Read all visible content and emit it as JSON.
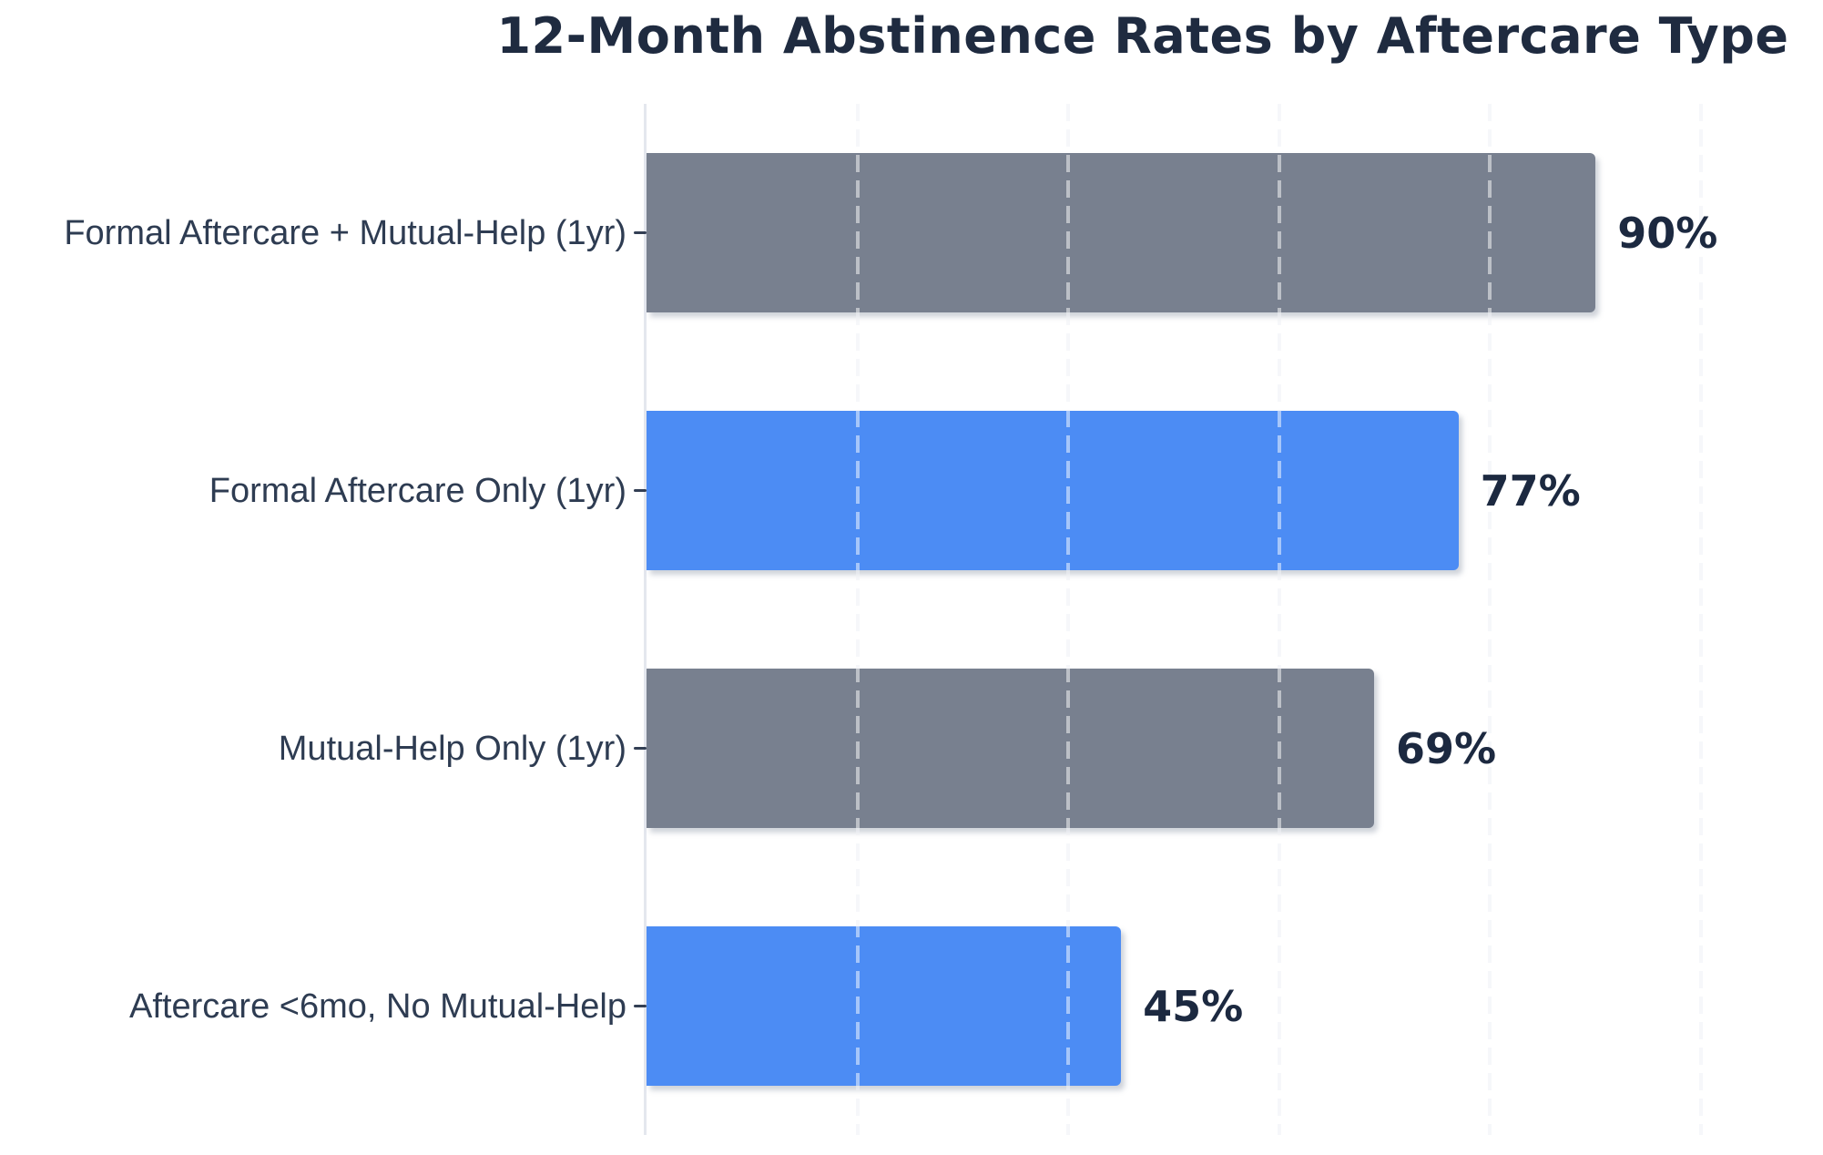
{
  "chart_data": {
    "type": "bar",
    "orientation": "horizontal",
    "title": "12-Month Abstinence Rates by Aftercare Type",
    "categories": [
      "Formal Aftercare + Mutual-Help (1yr)",
      "Formal Aftercare Only (1yr)",
      "Mutual-Help Only (1yr)",
      "Aftercare <6mo, No Mutual-Help"
    ],
    "values": [
      90,
      77,
      69,
      45
    ],
    "value_labels": [
      "90%",
      "77%",
      "69%",
      "45%"
    ],
    "bar_colors": [
      "#78808f",
      "#4c8cf4",
      "#78808f",
      "#4c8cf4"
    ],
    "xlabel": "",
    "ylabel": "",
    "xlim": [
      0,
      108
    ],
    "gridline_values": [
      20,
      40,
      60,
      80,
      100
    ],
    "grid_style": "dashed",
    "legend": "none",
    "colors": {
      "background": "#ffffff",
      "title_text": "#1f2b40",
      "category_text": "#2e3c52",
      "value_text": "#1c2940",
      "bar_gray": "#78808f",
      "bar_blue": "#4c8cf4",
      "axis_line": "#e4e7ee",
      "gridline_base": "#edeff4",
      "gridline_overlay": "rgba(255,255,255,0.5)",
      "tick_mark": "#333f54"
    }
  }
}
